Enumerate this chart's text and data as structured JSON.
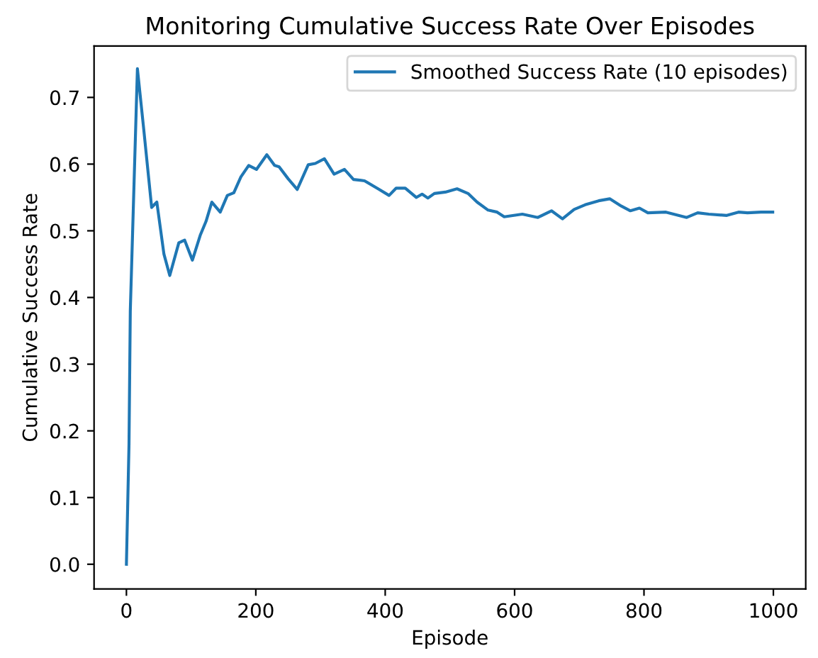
{
  "chart_data": {
    "type": "line",
    "title": "Monitoring Cumulative Success Rate Over Episodes",
    "xlabel": "Episode",
    "ylabel": "Cumulative Success Rate",
    "xlim": [
      -50,
      1050
    ],
    "xticks": [
      0,
      200,
      400,
      600,
      800,
      1000
    ],
    "ylim": [
      -0.037,
      0.777
    ],
    "yticks": [
      {
        "value": 0,
        "label": "0.0"
      },
      0.1,
      0.2,
      0.3,
      0.4,
      0.5,
      0.6,
      0.7
    ],
    "legend": "top right",
    "grid": false,
    "series": [
      {
        "name": "Smoothed Success Rate (10 episodes)",
        "color": "#1f77b4",
        "x": [
          0,
          4,
          6,
          17,
          27,
          39,
          47,
          58,
          67,
          81,
          90,
          102,
          114,
          123,
          132,
          145,
          156,
          166,
          177,
          189,
          201,
          217,
          229,
          236,
          250,
          264,
          281,
          292,
          306,
          321,
          337,
          351,
          368,
          389,
          406,
          417,
          431,
          448,
          457,
          466,
          476,
          493,
          511,
          528,
          542,
          559,
          573,
          584,
          612,
          636,
          657,
          674,
          692,
          709,
          730,
          747,
          765,
          779,
          793,
          806,
          834,
          866,
          883,
          900,
          928,
          946,
          960,
          981,
          999
        ],
        "values": [
          0.0,
          0.18,
          0.38,
          0.743,
          0.65,
          0.535,
          0.543,
          0.465,
          0.433,
          0.482,
          0.486,
          0.456,
          0.493,
          0.514,
          0.543,
          0.528,
          0.553,
          0.557,
          0.581,
          0.598,
          0.592,
          0.614,
          0.598,
          0.596,
          0.578,
          0.562,
          0.599,
          0.601,
          0.608,
          0.585,
          0.592,
          0.577,
          0.575,
          0.563,
          0.553,
          0.564,
          0.564,
          0.55,
          0.555,
          0.549,
          0.556,
          0.558,
          0.563,
          0.556,
          0.543,
          0.531,
          0.528,
          0.521,
          0.525,
          0.52,
          0.53,
          0.518,
          0.532,
          0.539,
          0.545,
          0.548,
          0.537,
          0.53,
          0.534,
          0.527,
          0.528,
          0.52,
          0.527,
          0.525,
          0.523,
          0.528,
          0.527,
          0.528,
          0.528
        ]
      }
    ]
  }
}
